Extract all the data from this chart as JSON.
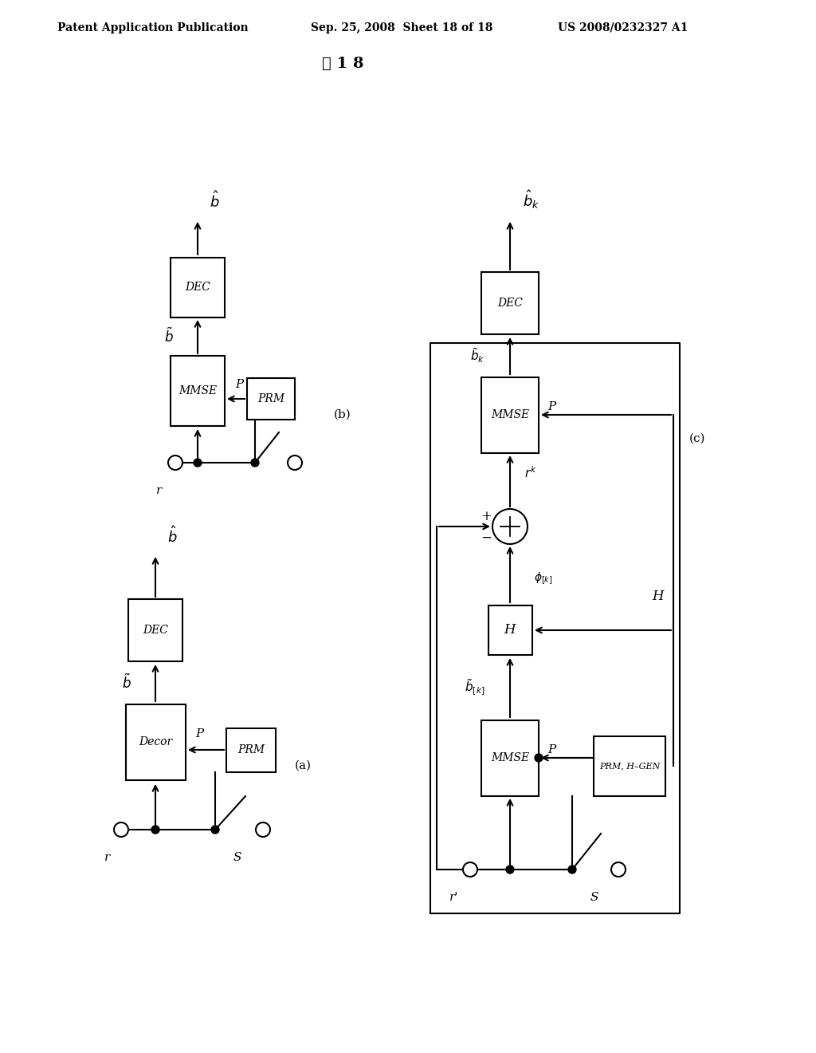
{
  "title_left": "Patent Application Publication",
  "title_center": "Sep. 25, 2008  Sheet 18 of 18",
  "title_right": "US 2008/0232327 A1",
  "fig_label": "囲 1 8",
  "bg_color": "#ffffff",
  "line_color": "#000000",
  "box_color": "#ffffff",
  "label_a": "(a)",
  "label_b": "(b)",
  "label_c": "(c)"
}
